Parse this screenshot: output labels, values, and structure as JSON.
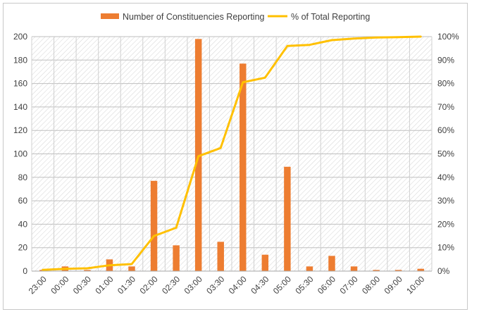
{
  "chart_data": {
    "type": "bar+line",
    "categories": [
      "23:00",
      "00:00",
      "00:30",
      "01:00",
      "01:30",
      "02:00",
      "02:30",
      "03:00",
      "03:30",
      "04:00",
      "04:30",
      "05:00",
      "05:30",
      "06:00",
      "07:00",
      "08:00",
      "09:00",
      "10:00"
    ],
    "series": [
      {
        "name": "Number of Constituencies Reporting",
        "type": "bar",
        "axis": "left",
        "color": "#ed7d31",
        "values": [
          1,
          4,
          1,
          10,
          4,
          77,
          22,
          198,
          25,
          177,
          14,
          89,
          4,
          13,
          4,
          1,
          1,
          2
        ]
      },
      {
        "name": "% of Total Reporting",
        "type": "line",
        "axis": "right",
        "color": "#ffc000",
        "values": [
          0.5,
          1,
          1.2,
          2.5,
          3,
          15,
          18.5,
          49,
          52.5,
          80.5,
          82.5,
          96,
          96.5,
          98.5,
          99.2,
          99.6,
          99.8,
          100
        ]
      }
    ],
    "y_left": {
      "min": 0,
      "max": 200,
      "step": 20,
      "ticks": [
        "0",
        "20",
        "40",
        "60",
        "80",
        "100",
        "120",
        "140",
        "160",
        "180",
        "200"
      ]
    },
    "y_right": {
      "min": 0,
      "max": 100,
      "step": 10,
      "ticks": [
        "0%",
        "10%",
        "20%",
        "30%",
        "40%",
        "50%",
        "60%",
        "70%",
        "80%",
        "90%",
        "100%"
      ]
    },
    "grid": true,
    "legend_position": "top-center"
  }
}
